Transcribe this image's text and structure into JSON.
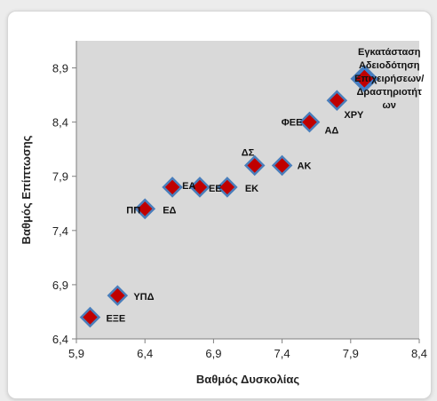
{
  "chart_data": {
    "type": "scatter",
    "xlabel": "Βαθμός Δυσκολίας",
    "ylabel": "Βαθμός Επίπτωσης",
    "xlim": [
      5.9,
      8.4
    ],
    "ylim": [
      6.4,
      9.15
    ],
    "xticks": [
      "5,9",
      "6,4",
      "6,9",
      "7,4",
      "7,9",
      "8,4"
    ],
    "yticks": [
      "6,4",
      "6,9",
      "7,4",
      "7,9",
      "8,4",
      "8,9"
    ],
    "grid": false,
    "colors": {
      "plot_bg": "#d9d9d9",
      "marker_fill": "#c00000",
      "marker_edge": "#4a7ebb",
      "highlight_fill": "#3a7fd5"
    },
    "points": [
      {
        "label": "ΕΞΕ",
        "x": 6.0,
        "y": 6.6
      },
      {
        "label": "ΥΠΔ",
        "x": 6.2,
        "y": 6.8
      },
      {
        "label": "ΠΠ",
        "x": 6.4,
        "y": 7.6
      },
      {
        "label": "ΕΔ",
        "x": 6.4,
        "y": 7.6
      },
      {
        "label": "ΕΑ",
        "x": 6.6,
        "y": 7.8
      },
      {
        "label": "ΕΕ",
        "x": 6.8,
        "y": 7.8
      },
      {
        "label": "ΕΚ",
        "x": 7.0,
        "y": 7.8
      },
      {
        "label": "ΔΣ",
        "x": 7.2,
        "y": 8.0
      },
      {
        "label": "ΑΚ",
        "x": 7.4,
        "y": 8.0
      },
      {
        "label": "ΦΕΕ",
        "x": 7.6,
        "y": 8.4
      },
      {
        "label": "ΑΔ",
        "x": 7.6,
        "y": 8.4
      },
      {
        "label": "ΧΡΥ",
        "x": 7.8,
        "y": 8.6
      },
      {
        "label": "Εγκατάσταση Αδειοδότηση Επιχειρήσεων/ Δραστηριοτήτ ων",
        "x": 8.0,
        "y": 8.8,
        "highlight": true
      }
    ]
  }
}
